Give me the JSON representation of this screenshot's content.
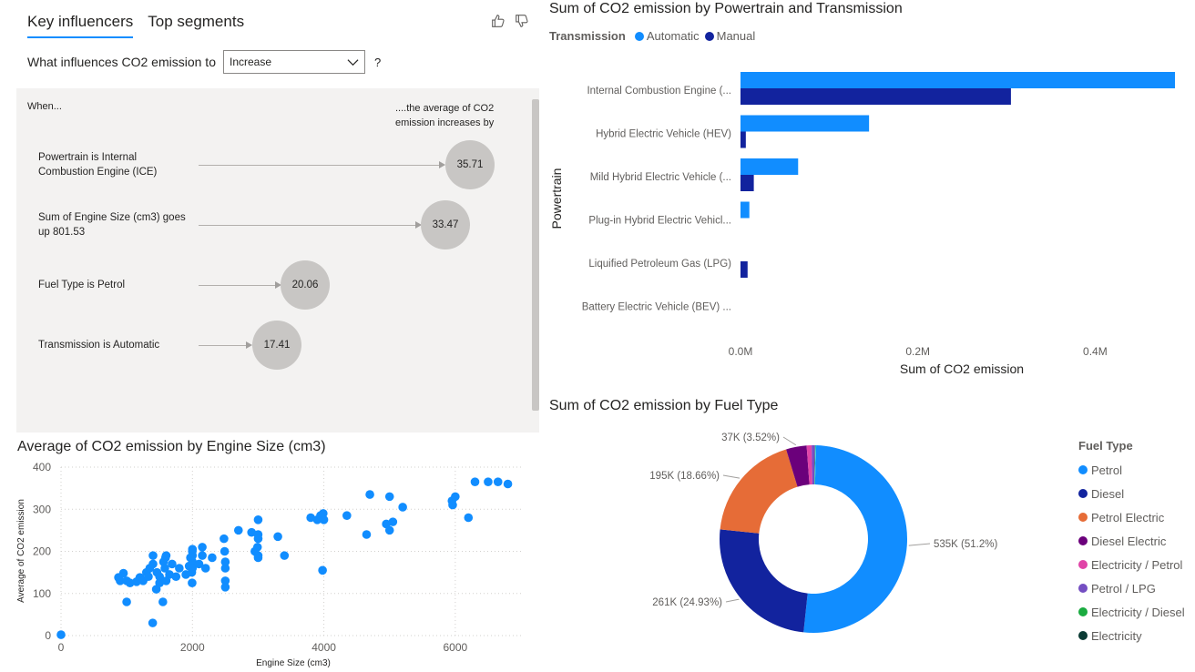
{
  "key_influencers": {
    "tabs": [
      {
        "label": "Key influencers",
        "active": true
      },
      {
        "label": "Top segments",
        "active": false
      }
    ],
    "question_label": "What influences CO2 emission to",
    "select_value": "Increase",
    "help": "?",
    "when_label": "When...",
    "avg_label": "....the average of CO2 emission increases by",
    "items": [
      {
        "text": "Powertrain is Internal Combustion Engine (ICE)",
        "value": "35.71"
      },
      {
        "text": "Sum of Engine Size (cm3) goes up 801.53",
        "value": "33.47"
      },
      {
        "text": "Fuel Type is Petrol",
        "value": "20.06"
      },
      {
        "text": "Transmission is Automatic",
        "value": "17.41"
      }
    ]
  },
  "bar_chart": {
    "title": "Sum of CO2 emission by Powertrain and Transmission",
    "legend_title": "Transmission",
    "colors": {
      "Automatic": "#118dff",
      "Manual": "#12239e"
    },
    "chart_data": {
      "type": "bar",
      "orientation": "horizontal",
      "categories": [
        "Internal Combustion Engine (...",
        "Hybrid Electric Vehicle (HEV)",
        "Mild Hybrid Electric Vehicle (...",
        "Plug-in Hybrid Electric Vehicl...",
        "Liquified Petroleum Gas (LPG)",
        "Battery Electric Vehicle (BEV) ..."
      ],
      "series": [
        {
          "name": "Automatic",
          "values": [
            490000,
            145000,
            65000,
            10000,
            0,
            0
          ]
        },
        {
          "name": "Manual",
          "values": [
            305000,
            6000,
            15000,
            0,
            8000,
            0
          ]
        }
      ],
      "xlabel": "Sum of CO2 emission",
      "ylabel": "Powertrain",
      "xticks": [
        "0.0M",
        "0.2M",
        "0.4M"
      ],
      "xtick_values": [
        0,
        200000,
        400000
      ],
      "xlim": [
        0,
        490000
      ],
      "legend": "top-left"
    }
  },
  "scatter_chart": {
    "title": "Average of CO2 emission by Engine Size (cm3)",
    "chart_data": {
      "type": "scatter",
      "xlabel": "Engine Size (cm3)",
      "ylabel": "Average of CO2 emission",
      "xlim": [
        0,
        7000
      ],
      "ylim": [
        0,
        400
      ],
      "xticks": [
        0,
        2000,
        4000,
        6000
      ],
      "yticks": [
        0,
        100,
        200,
        300,
        400
      ],
      "grid": true,
      "color": "#118dff",
      "points": [
        [
          0,
          2
        ],
        [
          875,
          138
        ],
        [
          900,
          130
        ],
        [
          950,
          148
        ],
        [
          999,
          80
        ],
        [
          1000,
          130
        ],
        [
          1050,
          125
        ],
        [
          1150,
          128
        ],
        [
          1200,
          138
        ],
        [
          1250,
          130
        ],
        [
          1300,
          150
        ],
        [
          1330,
          140
        ],
        [
          1350,
          160
        ],
        [
          1395,
          30
        ],
        [
          1400,
          190
        ],
        [
          1400,
          170
        ],
        [
          1450,
          110
        ],
        [
          1460,
          150
        ],
        [
          1500,
          125
        ],
        [
          1500,
          140
        ],
        [
          1550,
          80
        ],
        [
          1560,
          175
        ],
        [
          1580,
          160
        ],
        [
          1590,
          185
        ],
        [
          1600,
          190
        ],
        [
          1600,
          130
        ],
        [
          1650,
          145
        ],
        [
          1690,
          170
        ],
        [
          1750,
          140
        ],
        [
          1800,
          160
        ],
        [
          1900,
          145
        ],
        [
          1950,
          165
        ],
        [
          1970,
          185
        ],
        [
          1990,
          150
        ],
        [
          1995,
          125
        ],
        [
          1998,
          200
        ],
        [
          2000,
          175
        ],
        [
          2000,
          160
        ],
        [
          2000,
          190
        ],
        [
          2000,
          205
        ],
        [
          2100,
          170
        ],
        [
          2150,
          210
        ],
        [
          2150,
          190
        ],
        [
          2200,
          160
        ],
        [
          2300,
          185
        ],
        [
          2480,
          230
        ],
        [
          2490,
          200
        ],
        [
          2500,
          160
        ],
        [
          2500,
          130
        ],
        [
          2500,
          115
        ],
        [
          2500,
          175
        ],
        [
          2700,
          250
        ],
        [
          2900,
          245
        ],
        [
          2950,
          200
        ],
        [
          2990,
          210
        ],
        [
          3000,
          275
        ],
        [
          3000,
          240
        ],
        [
          3000,
          230
        ],
        [
          3000,
          190
        ],
        [
          3000,
          185
        ],
        [
          3300,
          235
        ],
        [
          3400,
          190
        ],
        [
          3800,
          280
        ],
        [
          3900,
          275
        ],
        [
          3950,
          285
        ],
        [
          3990,
          290
        ],
        [
          4000,
          275
        ],
        [
          3980,
          155
        ],
        [
          4350,
          285
        ],
        [
          4650,
          240
        ],
        [
          4700,
          335
        ],
        [
          4950,
          265
        ],
        [
          5000,
          330
        ],
        [
          5000,
          250
        ],
        [
          5050,
          270
        ],
        [
          5200,
          305
        ],
        [
          5950,
          320
        ],
        [
          5960,
          310
        ],
        [
          6000,
          330
        ],
        [
          6200,
          280
        ],
        [
          6300,
          365
        ],
        [
          6500,
          365
        ],
        [
          6650,
          365
        ],
        [
          6800,
          360
        ]
      ]
    }
  },
  "donut_chart": {
    "title": "Sum of CO2 emission by Fuel Type",
    "legend_title": "Fuel Type",
    "chart_data": {
      "type": "pie",
      "donut": true,
      "legend": "right",
      "slices": [
        {
          "label": "Petrol",
          "value": 535,
          "percent": 51.2,
          "color": "#118dff",
          "data_label": "535K (51.2%)"
        },
        {
          "label": "Diesel",
          "value": 261,
          "percent": 24.93,
          "color": "#12239e",
          "data_label": "261K (24.93%)"
        },
        {
          "label": "Petrol Electric",
          "value": 195,
          "percent": 18.66,
          "color": "#e66c37",
          "data_label": "195K (18.66%)"
        },
        {
          "label": "Diesel Electric",
          "value": 37,
          "percent": 3.52,
          "color": "#6b007b",
          "data_label": "37K (3.52%)"
        },
        {
          "label": "Electricity / Petrol",
          "value": 9,
          "percent": 0.9,
          "color": "#e044a7",
          "data_label": ""
        },
        {
          "label": "Petrol / LPG",
          "value": 6,
          "percent": 0.6,
          "color": "#744ec2",
          "data_label": ""
        },
        {
          "label": "Electricity / Diesel",
          "value": 1,
          "percent": 0.1,
          "color": "#1aab40",
          "data_label": ""
        },
        {
          "label": "Electricity",
          "value": 1,
          "percent": 0.1,
          "color": "#15c6f4",
          "data_label": ""
        }
      ]
    },
    "legend_dot_colors": [
      "#118dff",
      "#12239e",
      "#e66c37",
      "#6b007b",
      "#e044a7",
      "#744ec2",
      "#1aab40",
      "#0b3b34"
    ]
  }
}
